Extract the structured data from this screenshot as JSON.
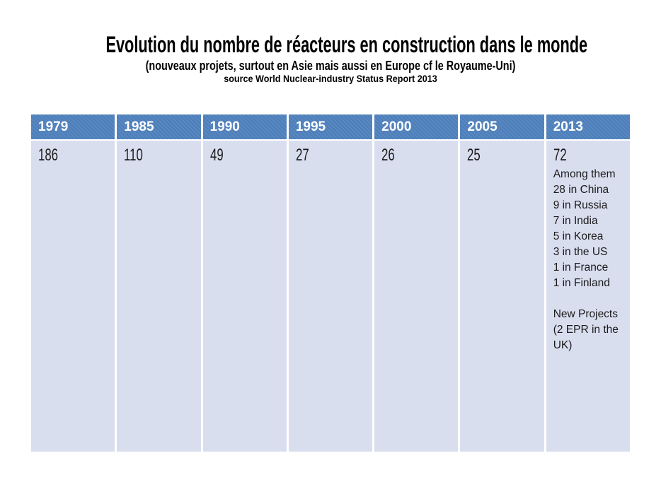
{
  "header": {
    "title": "Evolution du nombre de réacteurs en construction dans le monde",
    "subtitle": "(nouveaux projets, surtout en Asie mais aussi en Europe cf le Royaume-Uni)",
    "source": "source World Nuclear-industry Status Report  2013"
  },
  "table": {
    "headers": [
      "1979",
      "1985",
      "1990",
      "1995",
      "2000",
      "2005",
      "2013"
    ],
    "cells": [
      {
        "value": "186",
        "details": []
      },
      {
        "value": "110",
        "details": []
      },
      {
        "value": "49",
        "details": []
      },
      {
        "value": "27",
        "details": []
      },
      {
        "value": "26",
        "details": []
      },
      {
        "value": "25",
        "details": []
      },
      {
        "value": "72",
        "details": [
          "Among them",
          "28 in China",
          "9 in Russia",
          "7 in India",
          "5 in Korea",
          "3 in the US",
          "1 in France",
          "1 in Finland",
          "",
          "New Projects",
          "(2 EPR in the",
          "UK)"
        ]
      }
    ]
  },
  "chart_data": {
    "type": "table",
    "title": "Evolution du nombre de réacteurs en construction dans le monde",
    "subtitle": "(nouveaux projets, surtout en Asie mais aussi en Europe cf le Royaume-Uni)",
    "source": "source World Nuclear-industry Status Report 2013",
    "categories": [
      "1979",
      "1985",
      "1990",
      "1995",
      "2000",
      "2005",
      "2013"
    ],
    "values": [
      186,
      110,
      49,
      27,
      26,
      25,
      72
    ],
    "annotations_2013": {
      "among_them": {
        "China": 28,
        "Russia": 9,
        "India": 7,
        "Korea": 5,
        "US": 3,
        "France": 1,
        "Finland": 1
      },
      "new_projects": "2 EPR in the UK"
    }
  },
  "colors": {
    "page_bg": "#FFFFFF",
    "title_text": "#000000",
    "header_bg": "#4F81BD",
    "header_text": "#FFFFFF",
    "body_bg": "#D9DEEF",
    "body_text": "#1A1A1A"
  }
}
